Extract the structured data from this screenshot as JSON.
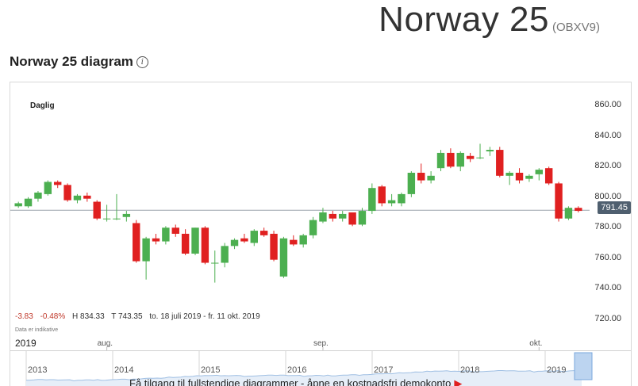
{
  "header": {
    "title": "Norway 25",
    "ticker": "(OBXV9)"
  },
  "section": {
    "title": "Norway 25 diagram"
  },
  "chart": {
    "period": "Daglig",
    "change_abs": "-3.83",
    "change_pct": "-0.48%",
    "high": "H 834.33",
    "low": "T 743.35",
    "range": "to. 18 juli 2019 - fr. 11 okt. 2019",
    "indicative_note": "Data er indikative",
    "last_price": "791.45",
    "year_label": "2019",
    "month_labels": [
      "aug.",
      "sep.",
      "okt."
    ],
    "navigator_years": [
      "2013",
      "2014",
      "2015",
      "2016",
      "2017",
      "2018",
      "2019"
    ],
    "promo": "Få tilgang til fullstendige diagrammer - åpne en kostnadsfri demokonto",
    "colors": {
      "up": "#4caf50",
      "down": "#e02020",
      "accent": "#4f5f6f"
    }
  },
  "chart_data": {
    "type": "candlestick",
    "ylim": [
      710,
      870
    ],
    "yticks": [
      720,
      740,
      760,
      780,
      800,
      820,
      840,
      860
    ],
    "ytick_labels": [
      "720.00",
      "740.00",
      "760.00",
      "780.00",
      "800.00",
      "820.00",
      "840.00",
      "860.00"
    ],
    "last_price": 791.45,
    "candles": [
      {
        "o": 794,
        "h": 797,
        "l": 793,
        "c": 796
      },
      {
        "o": 794,
        "h": 800,
        "l": 793,
        "c": 799
      },
      {
        "o": 799,
        "h": 804,
        "l": 797,
        "c": 803
      },
      {
        "o": 802,
        "h": 811,
        "l": 801,
        "c": 810
      },
      {
        "o": 810,
        "h": 811,
        "l": 806,
        "c": 808
      },
      {
        "o": 808,
        "h": 809,
        "l": 797,
        "c": 798
      },
      {
        "o": 798,
        "h": 802,
        "l": 796,
        "c": 801
      },
      {
        "o": 801,
        "h": 803,
        "l": 797,
        "c": 799
      },
      {
        "o": 797,
        "h": 798,
        "l": 785,
        "c": 786
      },
      {
        "o": 786,
        "h": 795,
        "l": 784,
        "c": 786
      },
      {
        "o": 786,
        "h": 802,
        "l": 785,
        "c": 786
      },
      {
        "o": 787,
        "h": 791,
        "l": 784,
        "c": 789
      },
      {
        "o": 783,
        "h": 785,
        "l": 757,
        "c": 758
      },
      {
        "o": 758,
        "h": 774,
        "l": 746,
        "c": 773
      },
      {
        "o": 773,
        "h": 776,
        "l": 769,
        "c": 771
      },
      {
        "o": 771,
        "h": 781,
        "l": 769,
        "c": 780
      },
      {
        "o": 780,
        "h": 782,
        "l": 774,
        "c": 776
      },
      {
        "o": 776,
        "h": 779,
        "l": 762,
        "c": 763
      },
      {
        "o": 763,
        "h": 780,
        "l": 762,
        "c": 780
      },
      {
        "o": 780,
        "h": 781,
        "l": 756,
        "c": 757
      },
      {
        "o": 757,
        "h": 765,
        "l": 744,
        "c": 757
      },
      {
        "o": 757,
        "h": 770,
        "l": 754,
        "c": 768
      },
      {
        "o": 768,
        "h": 773,
        "l": 766,
        "c": 772
      },
      {
        "o": 773,
        "h": 776,
        "l": 770,
        "c": 771
      },
      {
        "o": 770,
        "h": 779,
        "l": 768,
        "c": 778
      },
      {
        "o": 778,
        "h": 780,
        "l": 774,
        "c": 775
      },
      {
        "o": 776,
        "h": 778,
        "l": 758,
        "c": 759
      },
      {
        "o": 748,
        "h": 774,
        "l": 747,
        "c": 773
      },
      {
        "o": 772,
        "h": 775,
        "l": 768,
        "c": 769
      },
      {
        "o": 769,
        "h": 776,
        "l": 767,
        "c": 775
      },
      {
        "o": 775,
        "h": 787,
        "l": 773,
        "c": 785
      },
      {
        "o": 784,
        "h": 793,
        "l": 783,
        "c": 790
      },
      {
        "o": 789,
        "h": 791,
        "l": 784,
        "c": 786
      },
      {
        "o": 786,
        "h": 791,
        "l": 784,
        "c": 789
      },
      {
        "o": 790,
        "h": 790,
        "l": 781,
        "c": 782
      },
      {
        "o": 782,
        "h": 793,
        "l": 781,
        "c": 791
      },
      {
        "o": 791,
        "h": 809,
        "l": 789,
        "c": 806
      },
      {
        "o": 807,
        "h": 808,
        "l": 794,
        "c": 796
      },
      {
        "o": 796,
        "h": 802,
        "l": 794,
        "c": 798
      },
      {
        "o": 796,
        "h": 803,
        "l": 794,
        "c": 802
      },
      {
        "o": 802,
        "h": 817,
        "l": 800,
        "c": 816
      },
      {
        "o": 816,
        "h": 822,
        "l": 809,
        "c": 811
      },
      {
        "o": 811,
        "h": 817,
        "l": 809,
        "c": 814
      },
      {
        "o": 819,
        "h": 831,
        "l": 817,
        "c": 829
      },
      {
        "o": 829,
        "h": 832,
        "l": 819,
        "c": 820
      },
      {
        "o": 820,
        "h": 830,
        "l": 817,
        "c": 829
      },
      {
        "o": 827,
        "h": 829,
        "l": 823,
        "c": 825
      },
      {
        "o": 826,
        "h": 835,
        "l": 825,
        "c": 826
      },
      {
        "o": 830,
        "h": 833,
        "l": 827,
        "c": 831
      },
      {
        "o": 831,
        "h": 833,
        "l": 813,
        "c": 814
      },
      {
        "o": 814,
        "h": 817,
        "l": 808,
        "c": 816
      },
      {
        "o": 816,
        "h": 819,
        "l": 809,
        "c": 811
      },
      {
        "o": 812,
        "h": 815,
        "l": 810,
        "c": 814
      },
      {
        "o": 815,
        "h": 819,
        "l": 811,
        "c": 818
      },
      {
        "o": 819,
        "h": 820,
        "l": 808,
        "c": 809
      },
      {
        "o": 809,
        "h": 810,
        "l": 784,
        "c": 786
      },
      {
        "o": 786,
        "h": 794,
        "l": 785,
        "c": 793
      },
      {
        "o": 793,
        "h": 794,
        "l": 790,
        "c": 791
      }
    ],
    "month_tick_indices": [
      9,
      31,
      53
    ]
  }
}
